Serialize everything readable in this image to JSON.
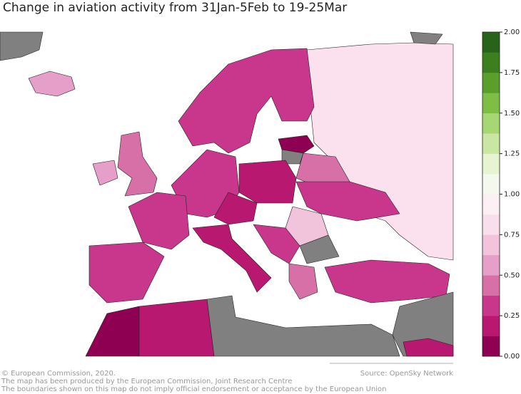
{
  "title": "Change in aviation activity from 31Jan-5Feb to 19-25Mar",
  "colorbar": {
    "range": [
      0,
      2
    ],
    "ticks": [
      {
        "value": 0,
        "label": "0.00"
      },
      {
        "value": 0.25,
        "label": "0.25"
      },
      {
        "value": 0.5,
        "label": "0.50"
      },
      {
        "value": 0.75,
        "label": "0.75"
      },
      {
        "value": 1,
        "label": "1.00"
      },
      {
        "value": 1.25,
        "label": "1.25"
      },
      {
        "value": 1.5,
        "label": "1.50"
      },
      {
        "value": 1.75,
        "label": "1.75"
      },
      {
        "value": 2,
        "label": "2.00"
      }
    ],
    "colors": [
      "#8e0152",
      "#b8186f",
      "#c9378d",
      "#d870a8",
      "#e59fc8",
      "#f1c4dc",
      "#f9dfec",
      "#fdf0f5",
      "#f5f8ed",
      "#e6f4d2",
      "#c9e7a2",
      "#a6d772",
      "#7fbd45",
      "#5a9f2c",
      "#3b7f1f",
      "#276419"
    ]
  },
  "credits": [
    "© European Commission, 2020.",
    "The map has been produced by the European Commission, Joint Research Centre",
    "The boundaries shown on this map do not imply official endorsement or acceptance by the European Union"
  ],
  "source": "Source: OpenSky Network"
}
